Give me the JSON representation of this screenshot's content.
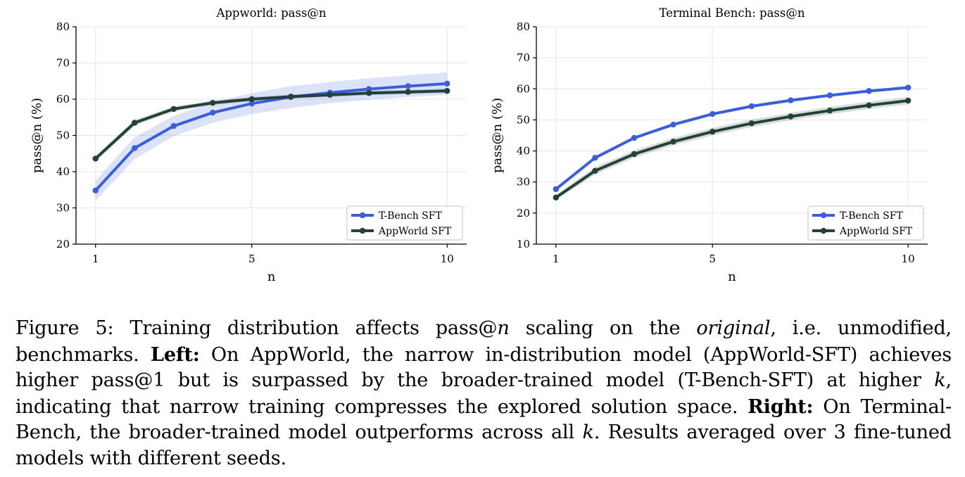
{
  "chart_data": [
    {
      "type": "line",
      "title": "Appworld: pass@n",
      "xlabel": "n",
      "ylabel": "pass@n (%)",
      "xlim": [
        0.5,
        10.5
      ],
      "ylim": [
        20,
        80
      ],
      "xticks": [
        1,
        5,
        10
      ],
      "yticks": [
        20,
        30,
        40,
        50,
        60,
        70,
        80
      ],
      "grid": true,
      "legend_position": "lower-right",
      "x": [
        1,
        2,
        3,
        4,
        5,
        6,
        7,
        8,
        9,
        10
      ],
      "series": [
        {
          "name": "T-Bench SFT",
          "color": "#3b5fd9",
          "values": [
            34.8,
            46.5,
            52.6,
            56.3,
            58.8,
            60.6,
            61.8,
            62.8,
            63.6,
            64.3
          ],
          "lower": [
            32.0,
            43.5,
            49.8,
            53.5,
            55.9,
            57.6,
            58.9,
            59.8,
            60.6,
            61.2
          ],
          "upper": [
            37.6,
            49.5,
            55.4,
            59.1,
            61.7,
            63.6,
            64.7,
            65.8,
            66.6,
            67.4
          ]
        },
        {
          "name": "AppWorld SFT",
          "color": "#23413a",
          "values": [
            43.6,
            53.5,
            57.3,
            59.0,
            60.0,
            60.7,
            61.2,
            61.7,
            62.0,
            62.3
          ],
          "lower": [
            42.8,
            52.7,
            56.6,
            58.4,
            59.4,
            60.1,
            60.6,
            61.1,
            61.4,
            61.7
          ],
          "upper": [
            44.4,
            54.3,
            58.0,
            59.6,
            60.6,
            61.3,
            61.8,
            62.3,
            62.6,
            62.9
          ]
        }
      ]
    },
    {
      "type": "line",
      "title": "Terminal Bench: pass@n",
      "xlabel": "n",
      "ylabel": "pass@n (%)",
      "xlim": [
        0.5,
        10.5
      ],
      "ylim": [
        10,
        80
      ],
      "xticks": [
        1,
        5,
        10
      ],
      "yticks": [
        10,
        20,
        30,
        40,
        50,
        60,
        70,
        80
      ],
      "grid": true,
      "legend_position": "lower-right",
      "x": [
        1,
        2,
        3,
        4,
        5,
        6,
        7,
        8,
        9,
        10
      ],
      "series": [
        {
          "name": "T-Bench SFT",
          "color": "#3b5fd9",
          "values": [
            27.7,
            37.8,
            44.2,
            48.5,
            51.9,
            54.4,
            56.3,
            57.9,
            59.3,
            60.4
          ],
          "lower": [
            27.2,
            37.3,
            43.7,
            48.0,
            51.4,
            53.9,
            55.8,
            57.4,
            58.8,
            59.9
          ],
          "upper": [
            28.2,
            38.3,
            44.7,
            49.0,
            52.4,
            54.9,
            56.8,
            58.4,
            59.8,
            60.9
          ]
        },
        {
          "name": "AppWorld SFT",
          "color": "#23413a",
          "values": [
            25.0,
            33.6,
            39.0,
            43.0,
            46.2,
            48.9,
            51.1,
            53.0,
            54.7,
            56.2
          ],
          "lower": [
            24.2,
            32.4,
            37.8,
            41.8,
            45.0,
            47.7,
            49.9,
            51.8,
            53.5,
            55.0
          ],
          "upper": [
            25.8,
            34.8,
            40.2,
            44.2,
            47.4,
            50.1,
            52.3,
            54.2,
            55.9,
            57.4
          ]
        }
      ]
    }
  ],
  "caption": {
    "p1": "Figure 5: Training distribution affects pass@",
    "n_italic": "n",
    "p2": " scaling on the ",
    "original_italic": "original",
    "p3": ", i.e.  unmodified, benchmarks.  ",
    "left_bold": "Left:",
    "p4": " On AppWorld, the narrow in-distribution model (AppWorld-SFT) achieves higher pass@1 but is surpassed by the broader-trained model (T-Bench-SFT) at higher ",
    "k1_italic": "k",
    "p5": ", indicating that narrow training compresses the explored solution space. ",
    "right_bold": "Right:",
    "p6": " On Terminal-Bench, the broader-trained model outperforms across all ",
    "k2_italic": "k",
    "p7": ". Results averaged over 3 fine-tuned models with different seeds."
  }
}
